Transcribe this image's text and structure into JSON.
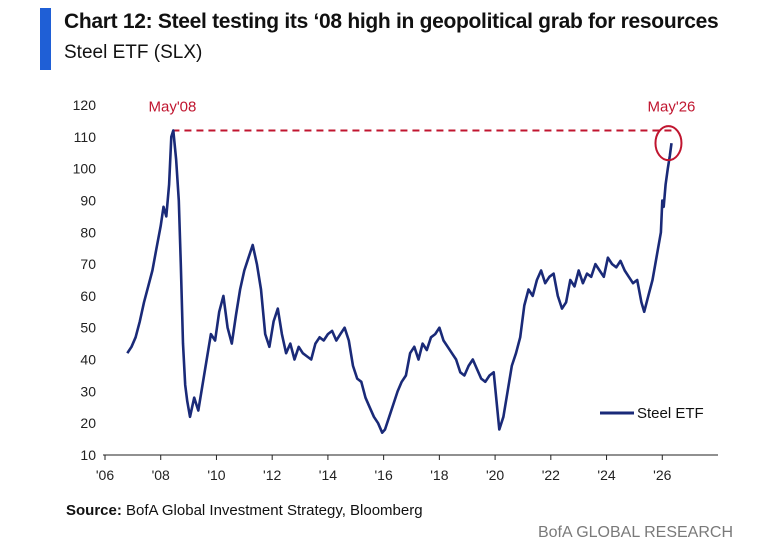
{
  "header": {
    "title": "Chart 12: Steel testing its ‘08 high in geopolitical grab for resources",
    "subtitle": "Steel ETF (SLX)"
  },
  "footer": {
    "source_label": "Source:",
    "source_text": "BofA Global Investment Strategy, Bloomberg",
    "brand": "BofA GLOBAL RESEARCH"
  },
  "colors": {
    "accent": "#1f5fd6",
    "series": "#1a2a78",
    "annotation": "#c0152f"
  },
  "chart_data": {
    "type": "line",
    "title": "Chart 12: Steel testing its ‘08 high in geopolitical grab for resources",
    "subtitle": "Steel ETF (SLX)",
    "xlabel": "",
    "ylabel": "",
    "xlim": [
      2006,
      2028
    ],
    "ylim": [
      10,
      120
    ],
    "yticks": [
      10,
      20,
      30,
      40,
      50,
      60,
      70,
      80,
      90,
      100,
      110,
      120
    ],
    "xticks": [
      2006,
      2008,
      2010,
      2012,
      2014,
      2016,
      2018,
      2020,
      2022,
      2024,
      2026
    ],
    "xtick_labels": [
      "'06",
      "'08",
      "'10",
      "'12",
      "'14",
      "'16",
      "'18",
      "'20",
      "'22",
      "'24",
      "'26"
    ],
    "legend": {
      "position": "bottom-right",
      "entries": [
        "Steel ETF"
      ]
    },
    "grid": false,
    "series": [
      {
        "name": "Steel ETF",
        "x": [
          2006.8,
          2006.95,
          2007.1,
          2007.25,
          2007.4,
          2007.55,
          2007.7,
          2007.85,
          2008.0,
          2008.1,
          2008.2,
          2008.3,
          2008.38,
          2008.45,
          2008.55,
          2008.65,
          2008.72,
          2008.8,
          2008.88,
          2008.95,
          2009.05,
          2009.2,
          2009.35,
          2009.5,
          2009.65,
          2009.8,
          2009.95,
          2010.1,
          2010.25,
          2010.4,
          2010.55,
          2010.7,
          2010.85,
          2011.0,
          2011.15,
          2011.3,
          2011.45,
          2011.6,
          2011.75,
          2011.9,
          2012.05,
          2012.2,
          2012.35,
          2012.5,
          2012.65,
          2012.8,
          2012.95,
          2013.1,
          2013.25,
          2013.4,
          2013.55,
          2013.7,
          2013.85,
          2014.0,
          2014.15,
          2014.3,
          2014.45,
          2014.6,
          2014.75,
          2014.9,
          2015.05,
          2015.2,
          2015.35,
          2015.5,
          2015.65,
          2015.8,
          2015.95,
          2016.05,
          2016.2,
          2016.35,
          2016.5,
          2016.65,
          2016.8,
          2016.95,
          2017.1,
          2017.25,
          2017.4,
          2017.55,
          2017.7,
          2017.85,
          2018.0,
          2018.15,
          2018.3,
          2018.45,
          2018.6,
          2018.75,
          2018.9,
          2019.05,
          2019.2,
          2019.35,
          2019.5,
          2019.65,
          2019.8,
          2019.95,
          2020.05,
          2020.15,
          2020.3,
          2020.45,
          2020.6,
          2020.75,
          2020.9,
          2021.05,
          2021.2,
          2021.35,
          2021.5,
          2021.65,
          2021.8,
          2021.95,
          2022.1,
          2022.25,
          2022.4,
          2022.55,
          2022.7,
          2022.85,
          2023.0,
          2023.15,
          2023.3,
          2023.45,
          2023.6,
          2023.75,
          2023.9,
          2024.05,
          2024.2,
          2024.35,
          2024.5,
          2024.65,
          2024.8,
          2024.95,
          2025.1,
          2025.25,
          2025.35,
          2025.5,
          2025.65,
          2025.75,
          2025.85,
          2025.95,
          2026.0,
          2026.05,
          2026.12,
          2026.2,
          2026.27,
          2026.33
        ],
        "values": [
          42,
          44,
          47,
          52,
          58,
          63,
          68,
          75,
          82,
          88,
          85,
          95,
          110,
          112,
          103,
          90,
          70,
          45,
          32,
          27,
          22,
          28,
          24,
          32,
          40,
          48,
          46,
          55,
          60,
          50,
          45,
          54,
          62,
          68,
          72,
          76,
          70,
          62,
          48,
          44,
          52,
          56,
          48,
          42,
          45,
          40,
          44,
          42,
          41,
          40,
          45,
          47,
          46,
          48,
          49,
          46,
          48,
          50,
          46,
          38,
          34,
          33,
          28,
          25,
          22,
          20,
          17,
          18,
          22,
          26,
          30,
          33,
          35,
          42,
          44,
          40,
          45,
          43,
          47,
          48,
          50,
          46,
          44,
          42,
          40,
          36,
          35,
          38,
          40,
          37,
          34,
          33,
          35,
          36,
          27,
          18,
          22,
          30,
          38,
          42,
          47,
          57,
          62,
          60,
          65,
          68,
          64,
          66,
          67,
          60,
          56,
          58,
          65,
          63,
          68,
          64,
          67,
          66,
          70,
          68,
          66,
          72,
          70,
          69,
          71,
          68,
          66,
          64,
          65,
          58,
          55,
          60,
          65,
          70,
          75,
          80,
          90,
          88,
          95,
          100,
          104,
          108
        ]
      }
    ],
    "annotations": [
      {
        "label": "May'08",
        "x": 2008.42,
        "y": 112
      },
      {
        "label": "May'26",
        "x": 2026.33,
        "y": 108
      }
    ],
    "reference_line": {
      "y": 112,
      "from_x": 2008.42,
      "to_x": 2026.33,
      "style": "dashed"
    }
  }
}
